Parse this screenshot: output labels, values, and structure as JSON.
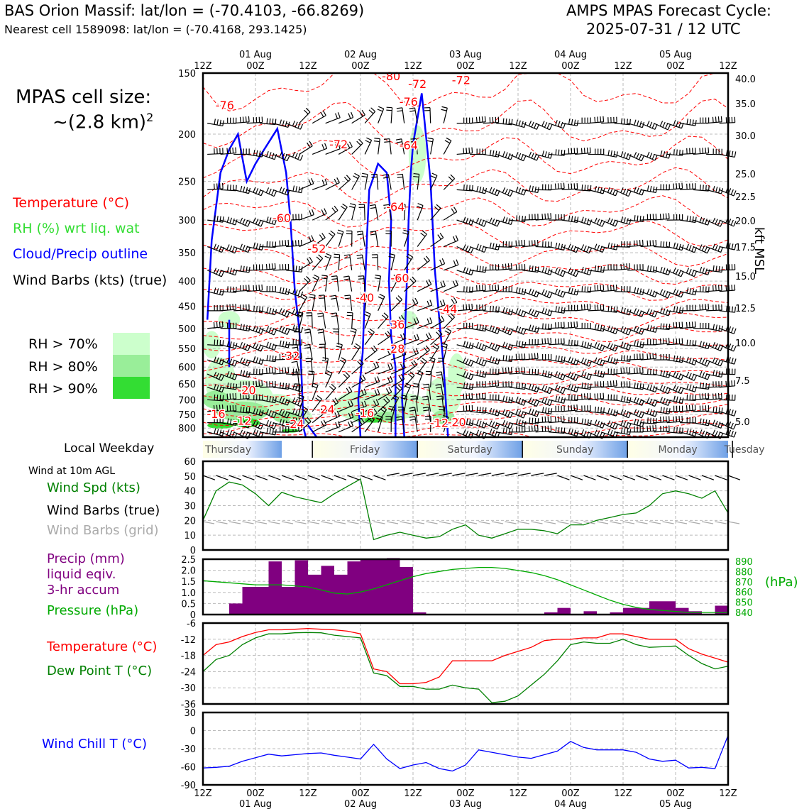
{
  "header": {
    "left_title": "BAS Orion Massif: lat/lon = (-70.4103, -66.8269)",
    "left_subtitle": "Nearest cell 1589098: lat/lon = (-70.4168, 293.1425)",
    "right_title_1": "AMPS MPAS Forecast Cycle:",
    "right_title_2": "2025-07-31 / 12 UTC"
  },
  "cell_size": {
    "line1": "MPAS cell size:",
    "line2": "~(2.8 km)",
    "sup": "2"
  },
  "legend": {
    "temperature": "Temperature (°C)",
    "rh": "RH (%) wrt liq. wat",
    "cloud": "Cloud/Precip outline",
    "wind": "Wind Barbs (kts) (true)",
    "rh70": "RH > 70%",
    "rh80": "RH > 80%",
    "rh90": "RH > 90%"
  },
  "colors": {
    "temp": "#ff0000",
    "rh70": "#ccffcc",
    "rh80": "#99ee99",
    "rh90": "#33dd33",
    "cloud": "#0000ff",
    "precip": "#800080",
    "pressure": "#00aa00",
    "wind_speed": "#008000",
    "dew": "#008000",
    "chill": "#0000ff",
    "grid_barb": "#aaaaaa"
  },
  "time_axis": {
    "tick_labels": [
      "12Z",
      "00Z",
      "12Z",
      "00Z",
      "12Z",
      "00Z",
      "12Z",
      "00Z",
      "12Z",
      "00Z",
      "12Z"
    ],
    "date_labels": [
      "01 Aug",
      "02 Aug",
      "03 Aug",
      "04 Aug",
      "05 Aug"
    ],
    "times_hours": [
      0,
      12,
      24,
      36,
      48,
      60,
      72,
      84,
      96,
      108,
      120
    ]
  },
  "weekday": {
    "title": "Local Weekday",
    "days": [
      "Thursday",
      "Friday",
      "Saturday",
      "Sunday",
      "Monday",
      "Tuesday"
    ]
  },
  "side_labels": {
    "wind10m": "Wind at 10m AGL",
    "wind_spd": "Wind Spd (kts)",
    "wind_barbs_true": "Wind Barbs (true)",
    "wind_barbs_grid": "Wind Barbs (grid)",
    "precip_1": "Precip (mm)",
    "precip_2": "liquid eqiv.",
    "precip_3": "3-hr accum",
    "pressure": "Pressure (hPa)",
    "pressure_unit": "(hPa)",
    "temperature": "Temperature (°C)",
    "dewpoint": "Dew Point T (°C)",
    "windchill": "Wind Chill T (°C)",
    "kft": "kft MSL"
  },
  "chart_data": [
    {
      "type": "heatmap",
      "name": "cross-section",
      "y_axis_pressure": [
        "150",
        "200",
        "250",
        "300",
        "350",
        "400",
        "450",
        "500",
        "550",
        "600",
        "650",
        "700",
        "750",
        "800"
      ],
      "y_axis_kft": [
        "40.0",
        "35.0",
        "30.0",
        "25.0",
        "22.5",
        "20.0",
        "17.5",
        "15.0",
        "12.5",
        "10.0",
        "7.5",
        "5.0"
      ],
      "temp_labels": [
        {
          "text": "-76",
          "t": 5,
          "p": 178
        },
        {
          "text": "-72",
          "t": 31,
          "p": 214
        },
        {
          "text": "-60",
          "t": 18,
          "p": 303
        },
        {
          "text": "-52",
          "t": 26,
          "p": 350
        },
        {
          "text": "-40",
          "t": 37,
          "p": 441
        },
        {
          "text": "-32",
          "t": 20,
          "p": 580
        },
        {
          "text": "-20",
          "t": 10,
          "p": 682
        },
        {
          "text": "-16",
          "t": 3,
          "p": 763
        },
        {
          "text": "-12",
          "t": 9,
          "p": 788
        },
        {
          "text": "-24",
          "t": 21,
          "p": 800
        },
        {
          "text": "-24",
          "t": 28,
          "p": 747
        },
        {
          "text": "-16",
          "t": 37,
          "p": 759
        },
        {
          "text": "-80",
          "t": 43,
          "p": 155
        },
        {
          "text": "-76",
          "t": 47,
          "p": 175
        },
        {
          "text": "-64",
          "t": 44,
          "p": 287
        },
        {
          "text": "-72",
          "t": 49,
          "p": 161
        },
        {
          "text": "-60",
          "t": 45,
          "p": 402
        },
        {
          "text": "-44",
          "t": 56,
          "p": 465
        },
        {
          "text": "-36",
          "t": 44,
          "p": 500
        },
        {
          "text": "-28",
          "t": 44,
          "p": 561
        },
        {
          "text": "-12",
          "t": 54,
          "p": 796
        },
        {
          "text": "-20",
          "t": 58,
          "p": 793
        },
        {
          "text": "-72",
          "t": 59,
          "p": 158
        },
        {
          "text": "-64",
          "t": 47,
          "p": 215
        }
      ]
    },
    {
      "type": "line",
      "name": "wind10m",
      "ylim": [
        0,
        60
      ],
      "yticks": [
        "0",
        "10",
        "20",
        "30",
        "40",
        "50",
        "60"
      ],
      "x": [
        0,
        3,
        6,
        9,
        12,
        15,
        18,
        21,
        24,
        27,
        30,
        33,
        36,
        39,
        42,
        45,
        48,
        51,
        54,
        57,
        60,
        63,
        66,
        69,
        72,
        75,
        78,
        81,
        84,
        87,
        90,
        93,
        96,
        99,
        102,
        105,
        108,
        111,
        114,
        117,
        120
      ],
      "speed": [
        20,
        40,
        46,
        44,
        38,
        30,
        39,
        36,
        34,
        32,
        38,
        43,
        48,
        7,
        10,
        12,
        10,
        8,
        9,
        14,
        17,
        10,
        8,
        11,
        14,
        14,
        13,
        11,
        17,
        17,
        20,
        22,
        24,
        25,
        30,
        38,
        40,
        38,
        35,
        40,
        25
      ]
    },
    {
      "type": "bar",
      "name": "precip",
      "ylim": [
        0,
        2.5
      ],
      "yticks": [
        "0",
        "0.5",
        "1.0",
        "1.5",
        "2.0",
        "2.5"
      ],
      "x": [
        0,
        3,
        6,
        9,
        12,
        15,
        18,
        21,
        24,
        27,
        30,
        33,
        36,
        39,
        42,
        45,
        48,
        51,
        54,
        57,
        60,
        63,
        66,
        69,
        72,
        75,
        78,
        81,
        84,
        87,
        90,
        93,
        96,
        99,
        102,
        105,
        108,
        111,
        114,
        117
      ],
      "values": [
        0,
        0,
        0.5,
        1.25,
        1.25,
        2.4,
        1.25,
        2.45,
        1.8,
        2.2,
        1.8,
        2.4,
        2.5,
        2.5,
        2.55,
        2.15,
        0.1,
        0,
        0,
        0,
        0,
        0,
        0,
        0,
        0,
        0,
        0.1,
        0.3,
        0,
        0.15,
        0,
        0.1,
        0.3,
        0.3,
        0.6,
        0.6,
        0.3,
        0.15,
        0,
        0.4
      ],
      "pressure_ylim": [
        838,
        892
      ],
      "pressure_yticks": [
        "840",
        "850",
        "860",
        "870",
        "880",
        "890"
      ],
      "pressure": [
        871,
        870,
        869,
        868,
        867,
        867,
        867,
        866,
        865,
        862,
        859,
        858,
        860,
        863,
        867,
        871,
        875,
        878,
        880,
        882,
        883,
        884,
        884,
        883,
        881,
        879,
        876,
        872,
        867,
        862,
        857,
        852,
        848,
        845,
        843,
        842,
        841,
        840,
        840,
        840,
        840
      ]
    },
    {
      "type": "line",
      "name": "temp-dew",
      "ylim": [
        -36,
        -6
      ],
      "yticks": [
        "-6",
        "-12",
        "-18",
        "-24",
        "-30",
        "-36"
      ],
      "x": [
        0,
        3,
        6,
        9,
        12,
        15,
        18,
        21,
        24,
        27,
        30,
        33,
        36,
        39,
        42,
        45,
        48,
        51,
        54,
        57,
        60,
        63,
        66,
        69,
        72,
        75,
        78,
        81,
        84,
        87,
        90,
        93,
        96,
        99,
        102,
        105,
        108,
        111,
        114,
        117,
        120
      ],
      "temperature": [
        -18,
        -14,
        -13,
        -11,
        -9.5,
        -8.5,
        -8.5,
        -8.3,
        -8,
        -8.3,
        -8.5,
        -9,
        -10,
        -23,
        -24,
        -28.5,
        -28.5,
        -28,
        -26,
        -20,
        -20,
        -20,
        -20,
        -18,
        -16.5,
        -15,
        -12.5,
        -12,
        -12,
        -11.5,
        -11.5,
        -10,
        -10,
        -11,
        -12,
        -12,
        -12,
        -15.5,
        -17.5,
        -19,
        -20.5
      ],
      "dewpoint": [
        -24,
        -19.5,
        -18,
        -14,
        -11.5,
        -10,
        -10,
        -9.6,
        -9.5,
        -9.6,
        -10.5,
        -11,
        -11.5,
        -24.5,
        -25.5,
        -29.5,
        -29.5,
        -30.5,
        -30.5,
        -29,
        -30,
        -30.5,
        -35.5,
        -35,
        -33,
        -29,
        -25,
        -20,
        -14,
        -13,
        -13.5,
        -13.5,
        -12,
        -14,
        -15,
        -14.8,
        -14.5,
        -18,
        -21,
        -23,
        -22
      ]
    },
    {
      "type": "line",
      "name": "windchill",
      "ylim": [
        -90,
        30
      ],
      "yticks": [
        "30",
        "0",
        "-30",
        "-60",
        "-90"
      ],
      "x": [
        0,
        3,
        6,
        9,
        12,
        15,
        18,
        21,
        24,
        27,
        30,
        33,
        36,
        39,
        42,
        45,
        48,
        51,
        54,
        57,
        60,
        63,
        66,
        69,
        72,
        75,
        78,
        81,
        84,
        87,
        90,
        93,
        96,
        99,
        102,
        105,
        108,
        111,
        114,
        117,
        120
      ],
      "windchill": [
        -62,
        -61,
        -59,
        -51,
        -45,
        -39,
        -42,
        -40,
        -38,
        -37,
        -41,
        -44,
        -47,
        -23,
        -47,
        -63,
        -57,
        -53,
        -63,
        -67,
        -57,
        -32,
        -36,
        -40,
        -44,
        -46,
        -40,
        -34,
        -18,
        -28,
        -32,
        -32,
        -32,
        -36,
        -47,
        -51,
        -49,
        -62,
        -61,
        -63,
        -8
      ]
    }
  ]
}
